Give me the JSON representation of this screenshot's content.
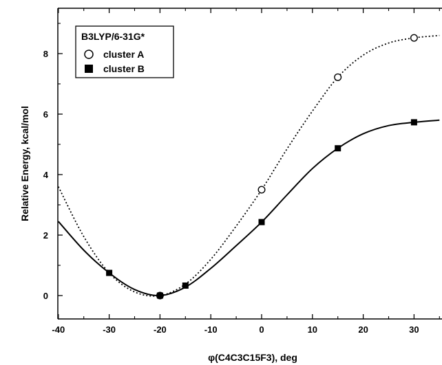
{
  "chart_data": {
    "type": "line",
    "xlabel": "φ(C4C3C15F3), deg",
    "ylabel": "Relative Energy, kcal/mol",
    "xlim": [
      -40,
      35
    ],
    "ylim": [
      -1.0,
      9.5
    ],
    "x_ticks": [
      -40,
      -30,
      -20,
      -10,
      0,
      10,
      20,
      30
    ],
    "y_ticks": [
      0,
      2,
      4,
      6,
      8
    ],
    "grid": false,
    "legend": {
      "title": "B3LYP/6-31G*",
      "placement": "top-left"
    },
    "series": [
      {
        "name": "cluster A",
        "marker": "open-circle",
        "line_style": "dotted",
        "points": [
          {
            "x": -20,
            "y": 0.0
          },
          {
            "x": 0,
            "y": 3.5
          },
          {
            "x": 15,
            "y": 7.22
          },
          {
            "x": 30,
            "y": 8.52
          }
        ],
        "curve": [
          {
            "x": -40,
            "y": 3.6
          },
          {
            "x": -35,
            "y": 1.95
          },
          {
            "x": -30,
            "y": 0.75
          },
          {
            "x": -25,
            "y": 0.12
          },
          {
            "x": -20,
            "y": 0.0
          },
          {
            "x": -15,
            "y": 0.38
          },
          {
            "x": -10,
            "y": 1.2
          },
          {
            "x": -5,
            "y": 2.3
          },
          {
            "x": 0,
            "y": 3.5
          },
          {
            "x": 5,
            "y": 4.85
          },
          {
            "x": 10,
            "y": 6.1
          },
          {
            "x": 15,
            "y": 7.22
          },
          {
            "x": 20,
            "y": 7.95
          },
          {
            "x": 25,
            "y": 8.35
          },
          {
            "x": 30,
            "y": 8.52
          },
          {
            "x": 35,
            "y": 8.6
          }
        ]
      },
      {
        "name": "cluster B",
        "marker": "filled-square",
        "line_style": "solid",
        "points": [
          {
            "x": -30,
            "y": 0.75
          },
          {
            "x": -20,
            "y": 0.0
          },
          {
            "x": -15,
            "y": 0.33
          },
          {
            "x": 0,
            "y": 2.43
          },
          {
            "x": 15,
            "y": 4.87
          },
          {
            "x": 30,
            "y": 5.73
          }
        ],
        "curve": [
          {
            "x": -40,
            "y": 2.45
          },
          {
            "x": -35,
            "y": 1.5
          },
          {
            "x": -30,
            "y": 0.75
          },
          {
            "x": -25,
            "y": 0.2
          },
          {
            "x": -20,
            "y": 0.0
          },
          {
            "x": -15,
            "y": 0.28
          },
          {
            "x": -10,
            "y": 0.9
          },
          {
            "x": -5,
            "y": 1.65
          },
          {
            "x": 0,
            "y": 2.43
          },
          {
            "x": 5,
            "y": 3.33
          },
          {
            "x": 10,
            "y": 4.2
          },
          {
            "x": 15,
            "y": 4.87
          },
          {
            "x": 20,
            "y": 5.35
          },
          {
            "x": 25,
            "y": 5.62
          },
          {
            "x": 30,
            "y": 5.73
          },
          {
            "x": 35,
            "y": 5.8
          }
        ]
      }
    ]
  }
}
